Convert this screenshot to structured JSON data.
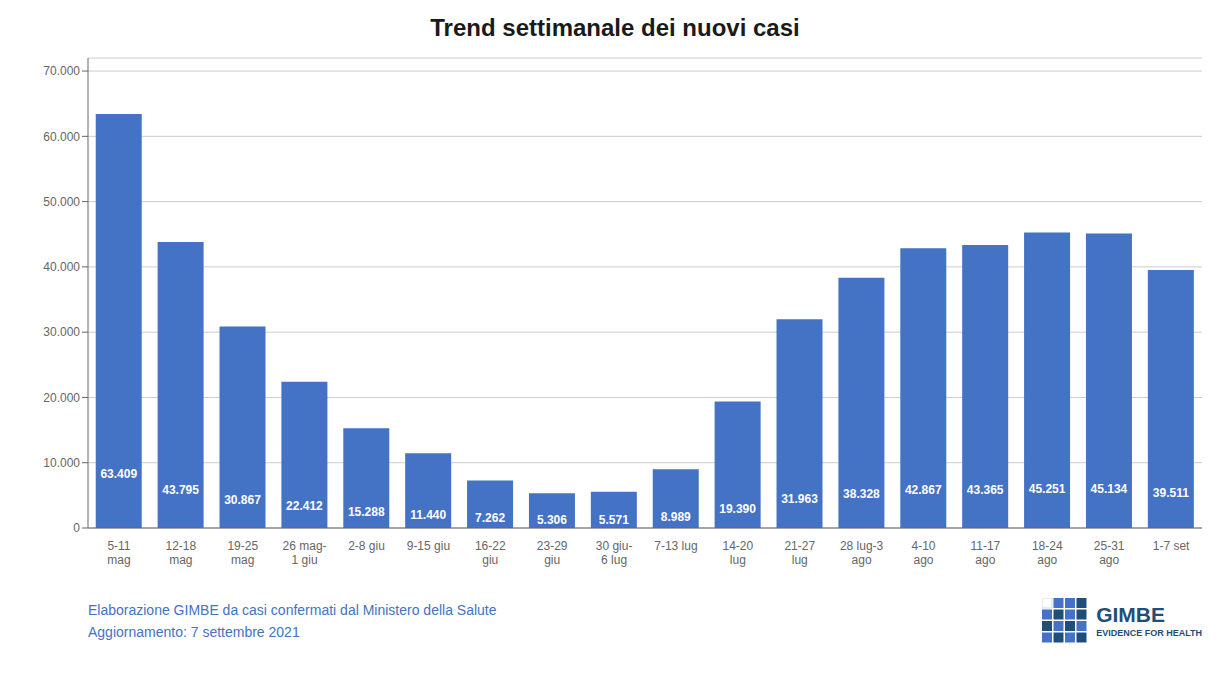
{
  "chart_data": {
    "type": "bar",
    "title": "Trend settimanale dei nuovi casi",
    "categories": [
      "5-11\nmag",
      "12-18\nmag",
      "19-25\nmag",
      "26 mag-\n1 giu",
      "2-8 giu",
      "9-15 giu",
      "16-22\ngiu",
      "23-29\ngiu",
      "30 giu-\n6 lug",
      "7-13 lug",
      "14-20\nlug",
      "21-27\nlug",
      "28 lug-3\nago",
      "4-10\nago",
      "11-17\nago",
      "18-24\nago",
      "25-31\nago",
      "1-7 set"
    ],
    "values": [
      63409,
      43795,
      30867,
      22412,
      15288,
      11440,
      7262,
      5306,
      5571,
      8989,
      19390,
      31963,
      38328,
      42867,
      43365,
      45251,
      45134,
      39511
    ],
    "value_labels": [
      "63.409",
      "43.795",
      "30.867",
      "22.412",
      "15.288",
      "11.440",
      "7.262",
      "5.306",
      "5.571",
      "8.989",
      "19.390",
      "31.963",
      "38.328",
      "42.867",
      "43.365",
      "45.251",
      "45.134",
      "39.511"
    ],
    "data_labels": true,
    "color": "#4472C4",
    "ylim": [
      0,
      72000
    ],
    "yticks": [
      0,
      {
        "value": 10000,
        "label": "10.000"
      },
      {
        "value": 20000,
        "label": "20.000"
      },
      {
        "value": 30000,
        "label": "30.000"
      },
      {
        "value": 40000,
        "label": "40.000"
      },
      {
        "value": 50000,
        "label": "50.000"
      },
      {
        "value": 60000,
        "label": "60.000"
      },
      {
        "value": 70000,
        "label": "70.000"
      }
    ],
    "grid": true,
    "annotations": [
      "Elaborazione GIMBE da casi confermati dal Ministero della Salute",
      "Aggiornamento: 7 settembre 2021",
      "GIMBE",
      "EVIDENCE FOR HEALTH"
    ]
  }
}
